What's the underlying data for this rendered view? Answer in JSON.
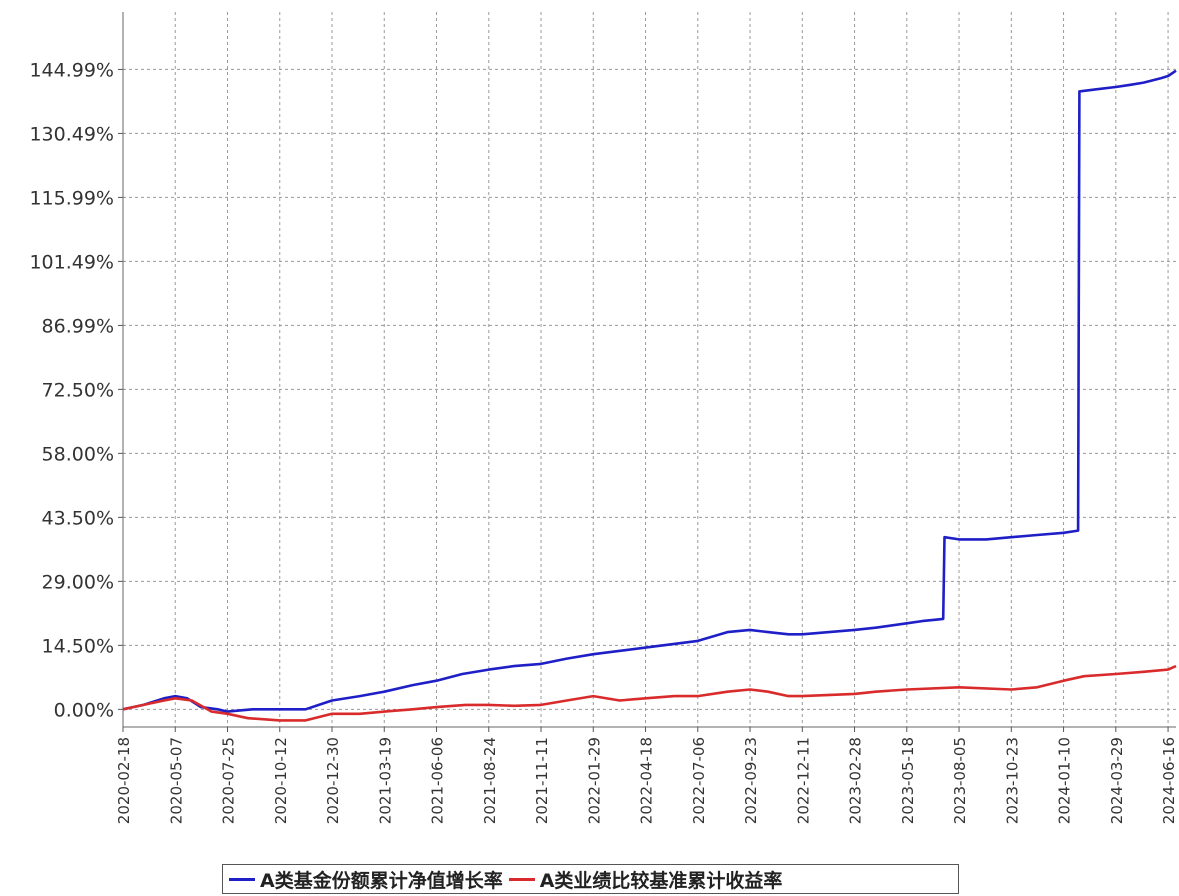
{
  "chart_data": {
    "type": "line",
    "title": "",
    "xlabel": "",
    "ylabel": "",
    "x_ticks": [
      "2020-02-18",
      "2020-05-07",
      "2020-07-25",
      "2020-10-12",
      "2020-12-30",
      "2021-03-19",
      "2021-06-06",
      "2021-08-24",
      "2021-11-11",
      "2022-01-29",
      "2022-04-18",
      "2022-07-06",
      "2022-09-23",
      "2022-12-11",
      "2023-02-28",
      "2023-05-18",
      "2023-08-05",
      "2023-10-23",
      "2024-01-10",
      "2024-03-29",
      "2024-06-16"
    ],
    "y_ticks": [
      "0.00%",
      "14.50%",
      "29.00%",
      "43.50%",
      "58.00%",
      "72.50%",
      "86.99%",
      "101.49%",
      "115.99%",
      "130.49%",
      "144.99%"
    ],
    "y_tick_values": [
      0,
      14.5,
      29.0,
      43.5,
      58.0,
      72.5,
      86.99,
      101.49,
      115.99,
      130.49,
      144.99
    ],
    "ylim": [
      -4,
      158
    ],
    "xlim": [
      "2020-02-18",
      "2024-06-28"
    ],
    "grid": true,
    "legend_position": "bottom-center",
    "series": [
      {
        "name": "A类基金份额累计净值增长率",
        "color": "#1f1fc7",
        "points": [
          [
            "2020-02-18",
            0.0
          ],
          [
            "2020-03-20",
            1.0
          ],
          [
            "2020-04-20",
            2.5
          ],
          [
            "2020-05-07",
            3.0
          ],
          [
            "2020-05-25",
            2.5
          ],
          [
            "2020-06-15",
            0.5
          ],
          [
            "2020-07-10",
            0.0
          ],
          [
            "2020-07-25",
            -0.5
          ],
          [
            "2020-09-01",
            0.0
          ],
          [
            "2020-10-12",
            0.0
          ],
          [
            "2020-11-20",
            0.0
          ],
          [
            "2020-12-10",
            1.0
          ],
          [
            "2020-12-30",
            2.0
          ],
          [
            "2021-02-10",
            3.0
          ],
          [
            "2021-03-19",
            4.0
          ],
          [
            "2021-05-01",
            5.5
          ],
          [
            "2021-06-06",
            6.5
          ],
          [
            "2021-07-15",
            8.0
          ],
          [
            "2021-08-24",
            9.0
          ],
          [
            "2021-10-01",
            9.8
          ],
          [
            "2021-11-11",
            10.3
          ],
          [
            "2021-12-20",
            11.5
          ],
          [
            "2022-01-29",
            12.5
          ],
          [
            "2022-04-18",
            14.0
          ],
          [
            "2022-07-06",
            15.5
          ],
          [
            "2022-08-20",
            17.5
          ],
          [
            "2022-09-23",
            18.0
          ],
          [
            "2022-10-20",
            17.5
          ],
          [
            "2022-11-20",
            17.0
          ],
          [
            "2022-12-11",
            17.0
          ],
          [
            "2023-02-28",
            18.0
          ],
          [
            "2023-04-01",
            18.5
          ],
          [
            "2023-05-18",
            19.5
          ],
          [
            "2023-06-10",
            20.0
          ],
          [
            "2023-07-12",
            20.5
          ],
          [
            "2023-07-14",
            39.0
          ],
          [
            "2023-08-05",
            38.5
          ],
          [
            "2023-09-15",
            38.5
          ],
          [
            "2023-10-23",
            39.0
          ],
          [
            "2023-12-01",
            39.5
          ],
          [
            "2024-01-10",
            40.0
          ],
          [
            "2024-02-01",
            40.5
          ],
          [
            "2024-02-03",
            140.0
          ],
          [
            "2024-03-01",
            140.5
          ],
          [
            "2024-03-29",
            141.0
          ],
          [
            "2024-04-20",
            141.5
          ],
          [
            "2024-05-10",
            142.0
          ],
          [
            "2024-06-05",
            143.0
          ],
          [
            "2024-06-16",
            143.5
          ],
          [
            "2024-06-28",
            144.7
          ]
        ]
      },
      {
        "name": "A类业绩比较基准累计收益率",
        "color": "#d92b2b",
        "points": [
          [
            "2020-02-18",
            0.0
          ],
          [
            "2020-03-20",
            1.0
          ],
          [
            "2020-04-20",
            2.0
          ],
          [
            "2020-05-07",
            2.5
          ],
          [
            "2020-06-01",
            2.0
          ],
          [
            "2020-07-01",
            -0.5
          ],
          [
            "2020-07-25",
            -1.0
          ],
          [
            "2020-08-25",
            -2.0
          ],
          [
            "2020-10-12",
            -2.5
          ],
          [
            "2020-11-20",
            -2.5
          ],
          [
            "2020-12-30",
            -1.0
          ],
          [
            "2021-02-10",
            -1.0
          ],
          [
            "2021-03-19",
            -0.5
          ],
          [
            "2021-05-01",
            0.0
          ],
          [
            "2021-06-06",
            0.5
          ],
          [
            "2021-07-20",
            1.0
          ],
          [
            "2021-08-24",
            1.0
          ],
          [
            "2021-10-01",
            0.8
          ],
          [
            "2021-11-11",
            1.0
          ],
          [
            "2021-12-20",
            2.0
          ],
          [
            "2022-01-29",
            3.0
          ],
          [
            "2022-03-10",
            2.0
          ],
          [
            "2022-04-18",
            2.5
          ],
          [
            "2022-06-01",
            3.0
          ],
          [
            "2022-07-06",
            3.0
          ],
          [
            "2022-08-20",
            4.0
          ],
          [
            "2022-09-23",
            4.5
          ],
          [
            "2022-10-20",
            4.0
          ],
          [
            "2022-11-20",
            3.0
          ],
          [
            "2022-12-11",
            3.0
          ],
          [
            "2023-02-28",
            3.5
          ],
          [
            "2023-04-01",
            4.0
          ],
          [
            "2023-05-18",
            4.5
          ],
          [
            "2023-08-05",
            5.0
          ],
          [
            "2023-10-23",
            4.5
          ],
          [
            "2023-12-01",
            5.0
          ],
          [
            "2024-01-10",
            6.5
          ],
          [
            "2024-02-10",
            7.5
          ],
          [
            "2024-03-29",
            8.0
          ],
          [
            "2024-05-10",
            8.5
          ],
          [
            "2024-06-16",
            9.0
          ],
          [
            "2024-06-28",
            9.8
          ]
        ]
      }
    ]
  }
}
